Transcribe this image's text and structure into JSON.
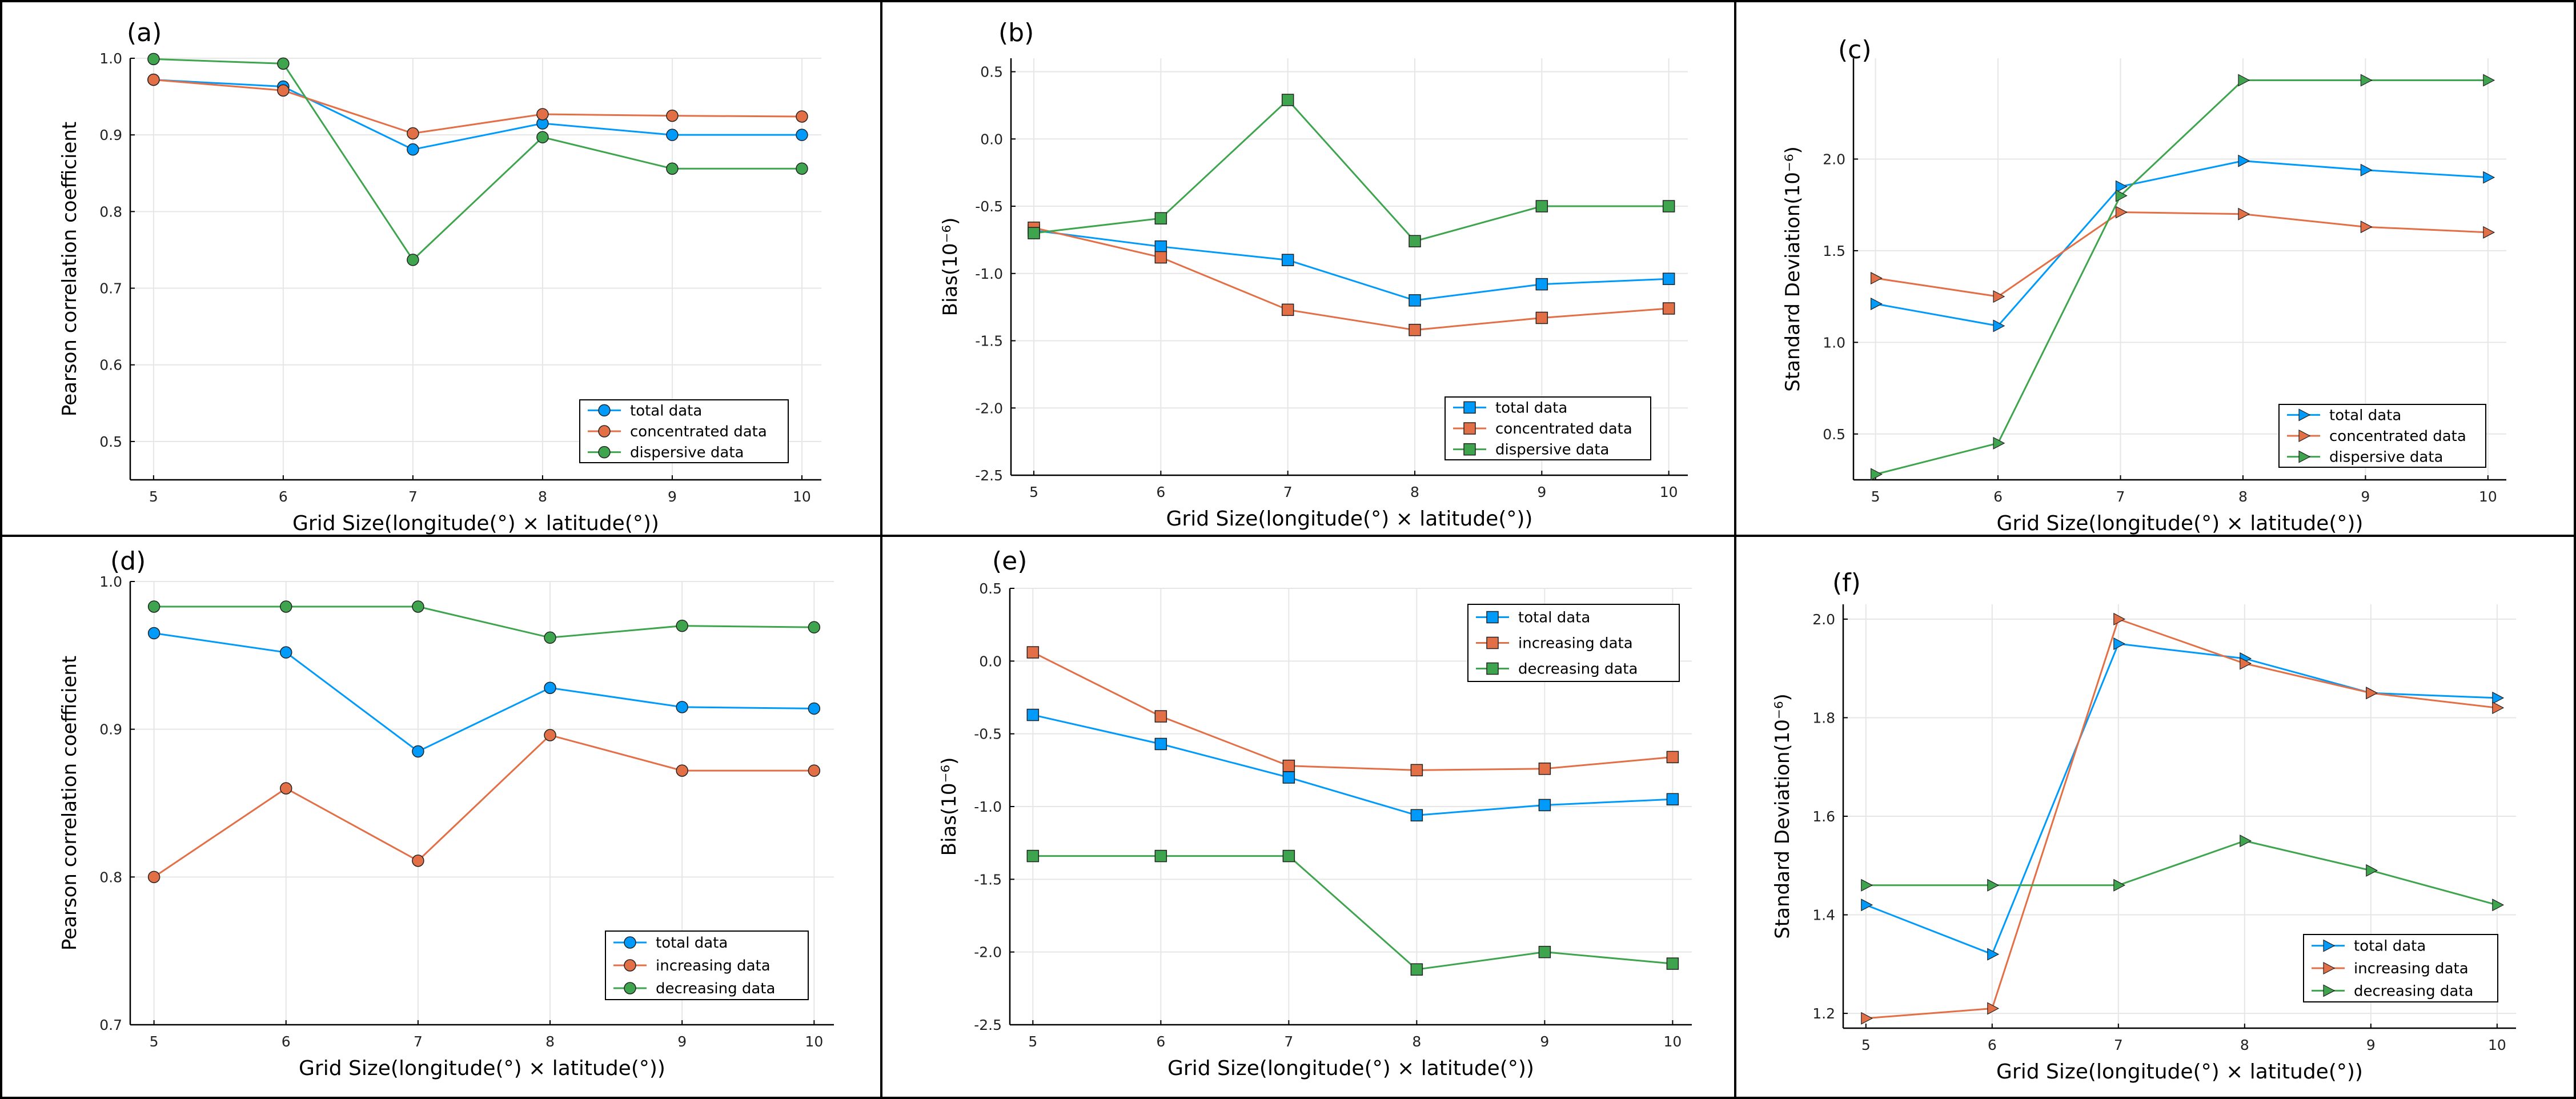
{
  "figure": {
    "border_color": "#000000"
  },
  "chart_data": [
    {
      "panel": "(a)",
      "type": "line",
      "xlabel": "Grid Size(longitude(°) × latitude(°))",
      "ylabel": "Pearson correlation coefficient",
      "x": [
        5,
        6,
        7,
        8,
        9,
        10
      ],
      "xticks": [
        "5",
        "6",
        "7",
        "8",
        "9",
        "10"
      ],
      "ylim": [
        0.45,
        1.0
      ],
      "yticks": [
        "0.5",
        "0.6",
        "0.7",
        "0.8",
        "0.9",
        "1.0"
      ],
      "ytick_values": [
        0.5,
        0.6,
        0.7,
        0.8,
        0.9,
        1.0
      ],
      "marker": "circle",
      "grid": true,
      "legend_position": "bottom-right",
      "series": [
        {
          "name": "total data",
          "color": "#009AFA",
          "values": [
            0.972,
            0.963,
            0.881,
            0.915,
            0.9,
            0.9
          ]
        },
        {
          "name": "concentrated data",
          "color": "#E36F47",
          "values": [
            0.972,
            0.958,
            0.902,
            0.927,
            0.925,
            0.924
          ]
        },
        {
          "name": "dispersive data",
          "color": "#3EA44E",
          "values": [
            0.999,
            0.993,
            0.737,
            0.897,
            0.856,
            0.856
          ]
        }
      ]
    },
    {
      "panel": "(b)",
      "type": "line",
      "xlabel": "Grid Size(longitude(°) × latitude(°))",
      "ylabel": "Bias(10⁻⁶)",
      "x": [
        5,
        6,
        7,
        8,
        9,
        10
      ],
      "xticks": [
        "5",
        "6",
        "7",
        "8",
        "9",
        "10"
      ],
      "ylim": [
        -2.5,
        0.6
      ],
      "yticks": [
        "-2.5",
        "-2.0",
        "-1.5",
        "-1.0",
        "-0.5",
        "0.0",
        "0.5"
      ],
      "ytick_values": [
        -2.5,
        -2.0,
        -1.5,
        -1.0,
        -0.5,
        0.0,
        0.5
      ],
      "marker": "square",
      "grid": true,
      "legend_position": "bottom-right",
      "series": [
        {
          "name": "total data",
          "color": "#009AFA",
          "values": [
            -0.68,
            -0.8,
            -0.9,
            -1.2,
            -1.08,
            -1.04
          ]
        },
        {
          "name": "concentrated data",
          "color": "#E36F47",
          "values": [
            -0.66,
            -0.88,
            -1.27,
            -1.42,
            -1.33,
            -1.26
          ]
        },
        {
          "name": "dispersive data",
          "color": "#3EA44E",
          "values": [
            -0.7,
            -0.59,
            0.29,
            -0.76,
            -0.5,
            -0.5
          ]
        }
      ]
    },
    {
      "panel": "(c)",
      "type": "line",
      "xlabel": "Grid Size(longitude(°) × latitude(°))",
      "ylabel": "Standard Deviation(10⁻⁶)",
      "x": [
        5,
        6,
        7,
        8,
        9,
        10
      ],
      "xticks": [
        "5",
        "6",
        "7",
        "8",
        "9",
        "10"
      ],
      "ylim": [
        0.25,
        2.55
      ],
      "yticks": [
        "0.5",
        "1.0",
        "1.5",
        "2.0"
      ],
      "ytick_values": [
        0.5,
        1.0,
        1.5,
        2.0
      ],
      "marker": "triangle-right",
      "grid": true,
      "legend_position": "bottom-right",
      "series": [
        {
          "name": "total data",
          "color": "#009AFA",
          "values": [
            1.21,
            1.09,
            1.85,
            1.99,
            1.94,
            1.9
          ]
        },
        {
          "name": "concentrated data",
          "color": "#E36F47",
          "values": [
            1.35,
            1.25,
            1.71,
            1.7,
            1.63,
            1.6
          ]
        },
        {
          "name": "dispersive data",
          "color": "#3EA44E",
          "values": [
            0.28,
            0.45,
            1.8,
            2.43,
            2.43,
            2.43
          ]
        }
      ]
    },
    {
      "panel": "(d)",
      "type": "line",
      "xlabel": "Grid Size(longitude(°) × latitude(°))",
      "ylabel": "Pearson correlation coefficient",
      "x": [
        5,
        6,
        7,
        8,
        9,
        10
      ],
      "xticks": [
        "5",
        "6",
        "7",
        "8",
        "9",
        "10"
      ],
      "ylim": [
        0.7,
        1.0
      ],
      "yticks": [
        "0.7",
        "0.8",
        "0.9",
        "1.0"
      ],
      "ytick_values": [
        0.7,
        0.8,
        0.9,
        1.0
      ],
      "marker": "circle",
      "grid": true,
      "legend_position": "bottom-right",
      "series": [
        {
          "name": "total data",
          "color": "#009AFA",
          "values": [
            0.965,
            0.952,
            0.885,
            0.928,
            0.915,
            0.914
          ]
        },
        {
          "name": "increasing data",
          "color": "#E36F47",
          "values": [
            0.8,
            0.86,
            0.811,
            0.896,
            0.872,
            0.872
          ]
        },
        {
          "name": "decreasing data",
          "color": "#3EA44E",
          "values": [
            0.983,
            0.983,
            0.983,
            0.962,
            0.97,
            0.969
          ]
        }
      ]
    },
    {
      "panel": "(e)",
      "type": "line",
      "xlabel": "Grid Size(longitude(°) × latitude(°))",
      "ylabel": "Bias(10⁻⁶)",
      "x": [
        5,
        6,
        7,
        8,
        9,
        10
      ],
      "xticks": [
        "5",
        "6",
        "7",
        "8",
        "9",
        "10"
      ],
      "ylim": [
        -2.5,
        0.5
      ],
      "yticks": [
        "-2.5",
        "-2.0",
        "-1.5",
        "-1.0",
        "-0.5",
        "0.0",
        "0.5"
      ],
      "ytick_values": [
        -2.5,
        -2.0,
        -1.5,
        -1.0,
        -0.5,
        0.0,
        0.5
      ],
      "marker": "square",
      "grid": true,
      "legend_position": "top-right",
      "series": [
        {
          "name": "total data",
          "color": "#009AFA",
          "values": [
            -0.37,
            -0.57,
            -0.8,
            -1.06,
            -0.99,
            -0.95
          ]
        },
        {
          "name": "increasing data",
          "color": "#E36F47",
          "values": [
            0.06,
            -0.38,
            -0.72,
            -0.75,
            -0.74,
            -0.66
          ]
        },
        {
          "name": "decreasing data",
          "color": "#3EA44E",
          "values": [
            -1.34,
            -1.34,
            -1.34,
            -2.12,
            -2.0,
            -2.08
          ]
        }
      ]
    },
    {
      "panel": "(f)",
      "type": "line",
      "xlabel": "Grid Size(longitude(°) × latitude(°))",
      "ylabel": "Standard Deviation(10⁻⁶)",
      "x": [
        5,
        6,
        7,
        8,
        9,
        10
      ],
      "xticks": [
        "5",
        "6",
        "7",
        "8",
        "9",
        "10"
      ],
      "ylim": [
        1.17,
        2.03
      ],
      "yticks": [
        "1.2",
        "1.4",
        "1.6",
        "1.8",
        "2.0"
      ],
      "ytick_values": [
        1.2,
        1.4,
        1.6,
        1.8,
        2.0
      ],
      "marker": "triangle-right",
      "grid": true,
      "legend_position": "bottom-right",
      "series": [
        {
          "name": "total data",
          "color": "#009AFA",
          "values": [
            1.42,
            1.32,
            1.95,
            1.92,
            1.85,
            1.84
          ]
        },
        {
          "name": "increasing data",
          "color": "#E36F47",
          "values": [
            1.19,
            1.21,
            2.0,
            1.91,
            1.85,
            1.82
          ]
        },
        {
          "name": "decreasing data",
          "color": "#3EA44E",
          "values": [
            1.46,
            1.46,
            1.46,
            1.55,
            1.49,
            1.42
          ]
        }
      ]
    }
  ]
}
